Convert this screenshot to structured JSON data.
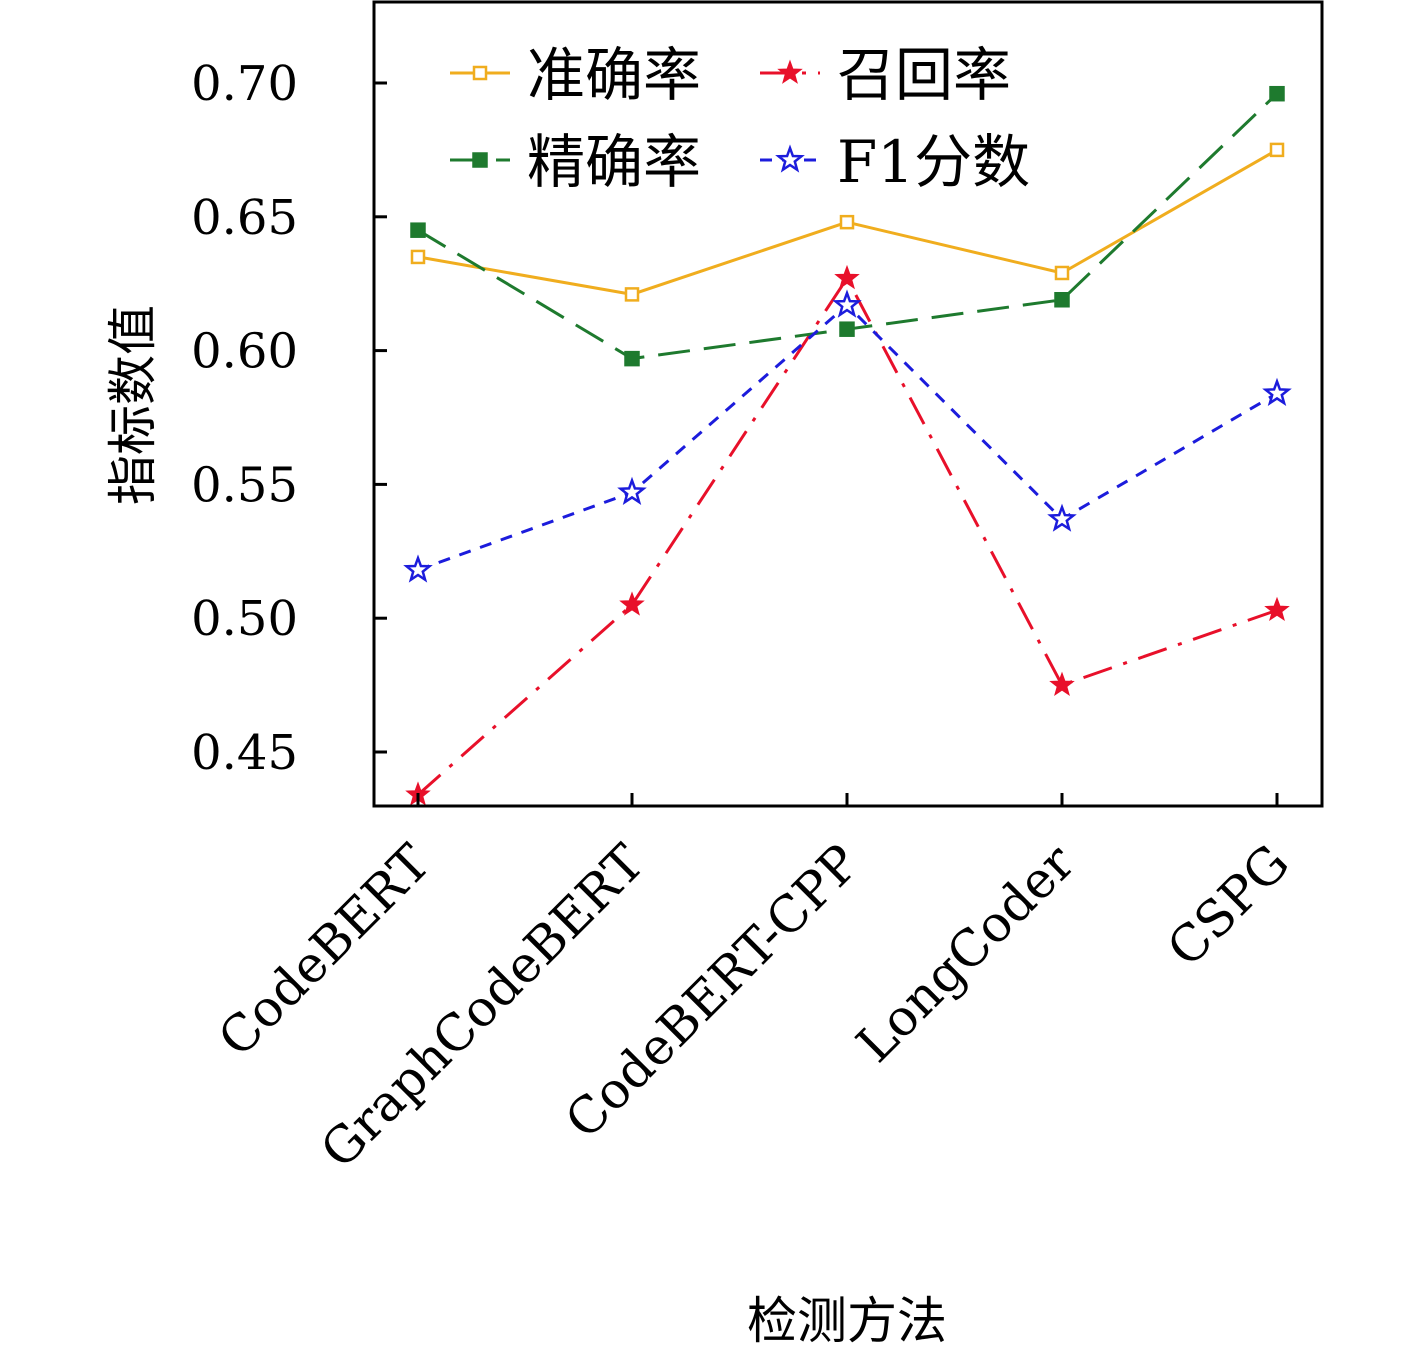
{
  "chart_data": {
    "type": "line",
    "categories": [
      "CodeBERT",
      "GraphCodeBERT",
      "CodeBERT-CPP",
      "LongCoder",
      "CSPG"
    ],
    "xlabel": "检测方法",
    "ylabel": "指标数值",
    "yticks": [
      "0.45",
      "0.50",
      "0.55",
      "0.60",
      "0.65",
      "0.70"
    ],
    "ylim": [
      0.43,
      0.73
    ],
    "grid": false,
    "legend_position": "top",
    "series": [
      {
        "name": "准确率",
        "values": [
          0.635,
          0.621,
          0.648,
          0.629,
          0.675
        ],
        "color": "#f0ad1e",
        "marker": "open-square",
        "line": "solid"
      },
      {
        "name": "召回率",
        "values": [
          0.434,
          0.505,
          0.627,
          0.475,
          0.503
        ],
        "color": "#e8102a",
        "marker": "filled-star",
        "line": "dash-dot"
      },
      {
        "name": "精确率",
        "values": [
          0.645,
          0.597,
          0.608,
          0.619,
          0.696
        ],
        "color": "#1e7a2e",
        "marker": "filled-square",
        "line": "long-dash"
      },
      {
        "name": "F1分数",
        "values": [
          0.518,
          0.547,
          0.617,
          0.537,
          0.584
        ],
        "color": "#1c1cdc",
        "marker": "open-star",
        "line": "short-dash"
      }
    ]
  }
}
